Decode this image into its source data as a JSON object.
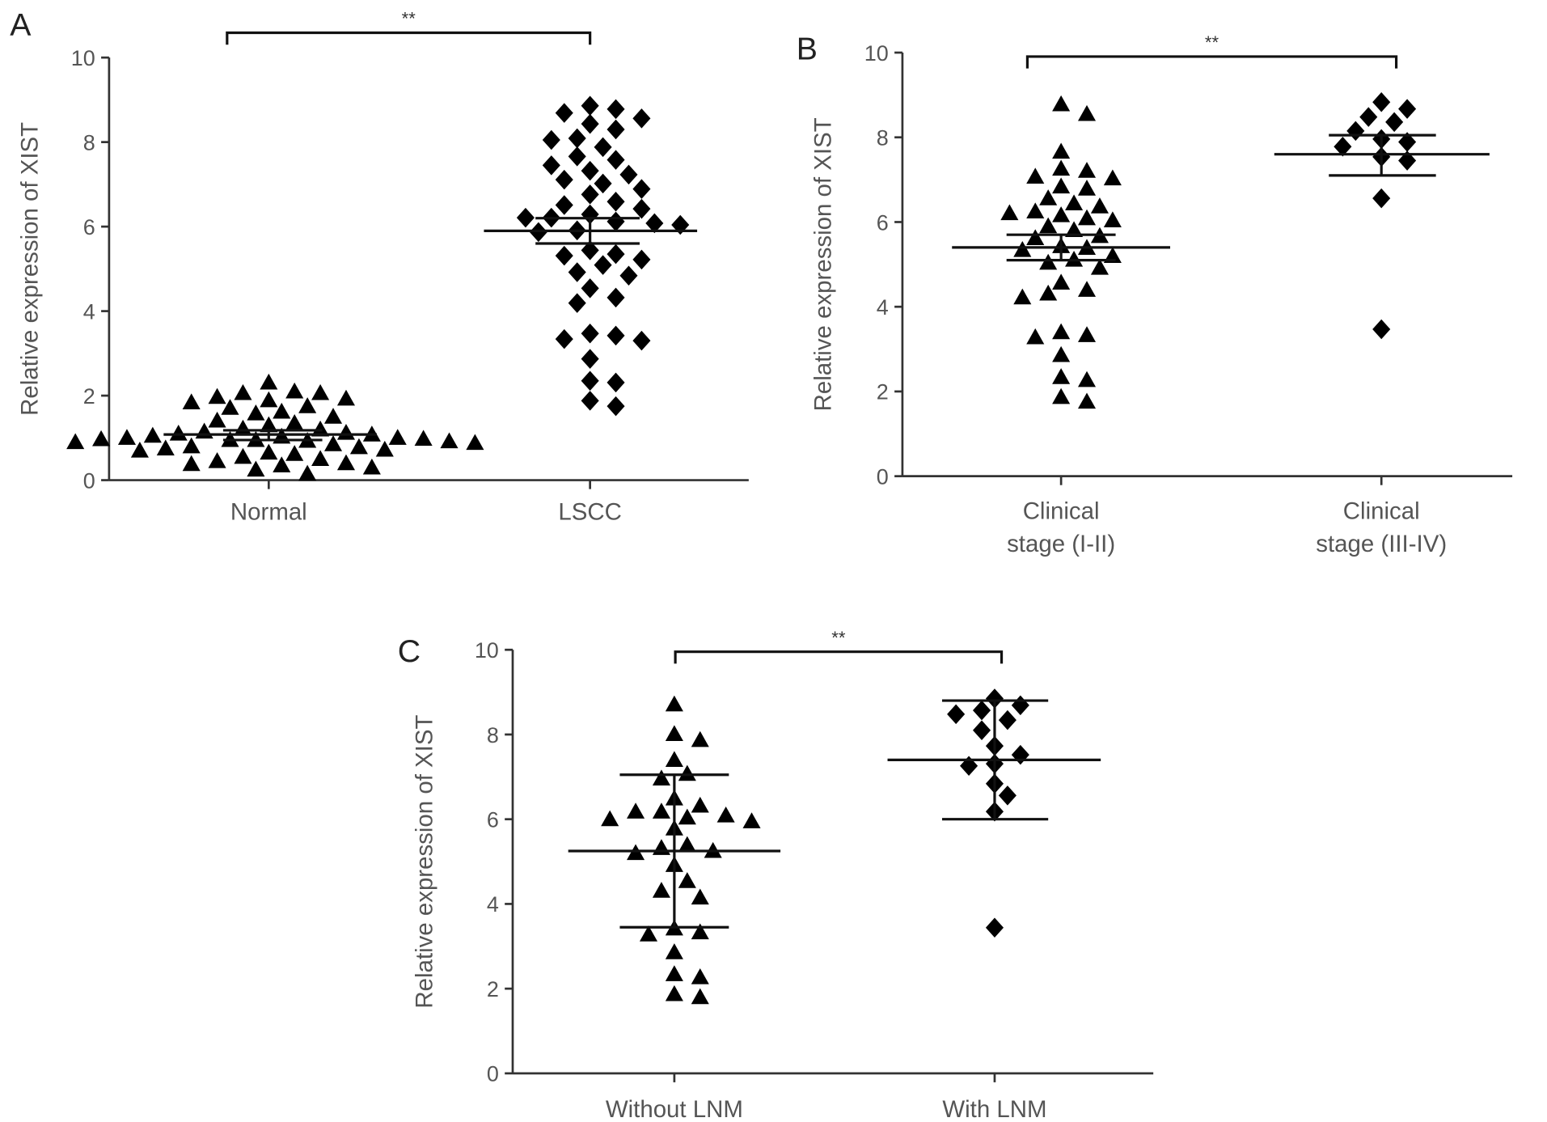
{
  "chart_data": [
    {
      "panel": "A",
      "type": "scatter",
      "ylabel": "Relative expression of XIST",
      "ylim": [
        0,
        10
      ],
      "yticks": [
        "0",
        "2",
        "4",
        "6",
        "8",
        "10"
      ],
      "categories": [
        "Normal",
        "LSCC"
      ],
      "significance": "**",
      "groups": [
        {
          "category": "Normal",
          "marker": "triangle",
          "values": [
            2.31,
            2.1,
            2.06,
            2.06,
            1.97,
            1.93,
            1.89,
            1.84,
            1.75,
            1.71,
            1.62,
            1.58,
            1.5,
            1.41,
            1.35,
            1.3,
            1.22,
            1.2,
            1.15,
            1.12,
            1.1,
            1.08,
            1.05,
            1.03,
            1.0,
            1.0,
            0.98,
            0.97,
            0.95,
            0.95,
            0.93,
            0.92,
            0.9,
            0.88,
            0.85,
            0.8,
            0.78,
            0.75,
            0.72,
            0.7,
            0.65,
            0.62,
            0.55,
            0.5,
            0.45,
            0.4,
            0.38,
            0.35,
            0.3,
            0.25,
            0.15
          ],
          "mean": 1.08,
          "error_low": 0.95,
          "error_high": 1.18
        },
        {
          "category": "LSCC",
          "marker": "diamond",
          "values": [
            8.86,
            8.78,
            8.69,
            8.56,
            8.43,
            8.3,
            8.09,
            8.05,
            7.88,
            7.66,
            7.58,
            7.45,
            7.32,
            7.23,
            7.11,
            7.02,
            6.89,
            6.76,
            6.59,
            6.51,
            6.42,
            6.29,
            6.21,
            6.21,
            6.12,
            6.08,
            6.04,
            5.91,
            5.87,
            5.44,
            5.35,
            5.31,
            5.22,
            5.09,
            4.92,
            4.84,
            4.54,
            4.32,
            4.19,
            3.47,
            3.42,
            3.34,
            3.3,
            2.87,
            2.35,
            2.31,
            1.88,
            1.75
          ],
          "mean": 5.9,
          "error_low": 5.6,
          "error_high": 6.2
        }
      ]
    },
    {
      "panel": "B",
      "type": "scatter",
      "ylabel": "Relative expression of XIST",
      "ylim": [
        0,
        10
      ],
      "yticks": [
        "0",
        "2",
        "4",
        "6",
        "8",
        "10"
      ],
      "categories": [
        [
          "Clinical",
          "stage (I-II)"
        ],
        [
          "Clinical",
          "stage (III-IV)"
        ]
      ],
      "significance": "**",
      "groups": [
        {
          "category": "Clinical stage (I-II)",
          "marker": "triangle",
          "values": [
            8.78,
            8.55,
            7.66,
            7.26,
            7.21,
            7.07,
            7.03,
            6.84,
            6.79,
            6.56,
            6.44,
            6.37,
            6.25,
            6.21,
            6.16,
            6.09,
            6.04,
            5.9,
            5.81,
            5.67,
            5.62,
            5.43,
            5.39,
            5.34,
            5.2,
            5.11,
            5.04,
            4.92,
            4.57,
            4.4,
            4.31,
            4.22,
            3.4,
            3.33,
            3.28,
            2.86,
            2.34,
            2.27,
            1.87,
            1.76
          ],
          "mean": 5.4,
          "error_low": 5.1,
          "error_high": 5.7
        },
        {
          "category": "Clinical stage (III-IV)",
          "marker": "diamond",
          "values": [
            8.83,
            8.67,
            8.48,
            8.36,
            8.15,
            7.96,
            7.89,
            7.78,
            7.54,
            7.45,
            6.56,
            3.47
          ],
          "mean": 7.6,
          "error_low": 7.1,
          "error_high": 8.05
        }
      ]
    },
    {
      "panel": "C",
      "type": "scatter",
      "ylabel": "Relative expression of XIST",
      "ylim": [
        0,
        10
      ],
      "yticks": [
        "0",
        "2",
        "4",
        "6",
        "8",
        "10"
      ],
      "categories": [
        "Without LNM",
        "With LNM"
      ],
      "significance": "**",
      "groups": [
        {
          "category": "Without LNM",
          "marker": "triangle",
          "values": [
            8.71,
            8.01,
            7.87,
            7.4,
            7.07,
            6.96,
            6.49,
            6.32,
            6.18,
            6.18,
            6.09,
            6.04,
            6.0,
            5.95,
            5.78,
            5.39,
            5.32,
            5.25,
            5.2,
            4.92,
            4.54,
            4.31,
            4.15,
            3.42,
            3.33,
            3.28,
            2.86,
            2.34,
            2.27,
            1.87,
            1.8
          ],
          "mean": 5.25,
          "error_low": 3.45,
          "error_high": 7.05
        },
        {
          "category": "With LNM",
          "marker": "diamond",
          "values": [
            8.85,
            8.69,
            8.57,
            8.48,
            8.34,
            8.1,
            7.73,
            7.52,
            7.31,
            7.26,
            6.84,
            6.56,
            6.18,
            3.44
          ],
          "mean": 7.4,
          "error_low": 6.0,
          "error_high": 8.8
        }
      ]
    }
  ]
}
